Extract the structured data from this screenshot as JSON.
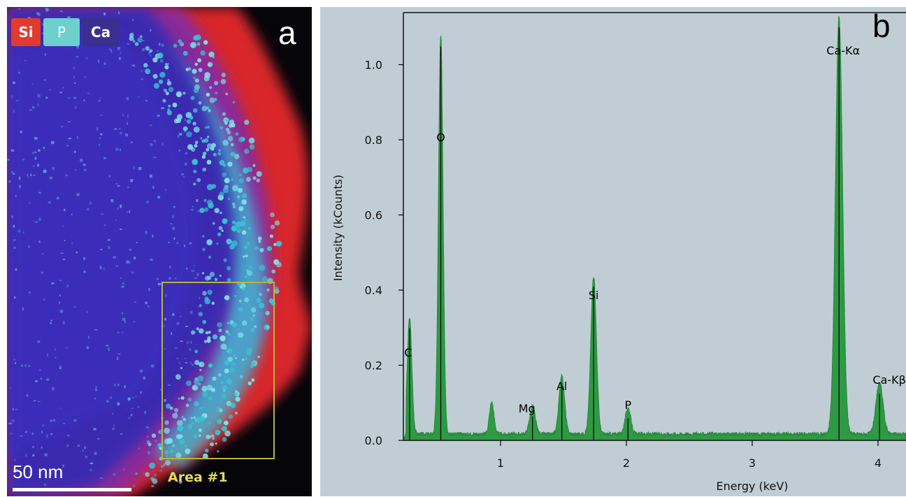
{
  "panel_a": {
    "letter": "a",
    "legend": [
      {
        "label": "Si",
        "color": "#e23a2e"
      },
      {
        "label": "P",
        "color": "#6fcfcf"
      },
      {
        "label": "Ca",
        "color": "#3b2f8f"
      }
    ],
    "scale_bar_label": "50 nm",
    "area_label": "Area #1",
    "area_box_color": "#b8b43a"
  },
  "panel_b": {
    "letter": "b"
  },
  "chart_data": {
    "type": "area",
    "xlabel": "Energy (keV)",
    "ylabel": "Intensity (kCounts)",
    "xlim": [
      0.2,
      4.2
    ],
    "ylim": [
      0,
      1.15
    ],
    "xticks": [
      1,
      2,
      3,
      4
    ],
    "yticks": [
      0.0,
      0.2,
      0.4,
      0.6,
      0.8,
      1.0
    ],
    "ytick_labels": [
      "0.0",
      "0.2",
      "0.4",
      "0.6",
      "0.8",
      "1.0"
    ],
    "grid": false,
    "color": "#2e9a44",
    "baseline": 0.012,
    "peaks": [
      {
        "label": "C",
        "energy": 0.277,
        "height": 0.31,
        "labeled": true
      },
      {
        "label": "O",
        "energy": 0.525,
        "height": 1.06,
        "labeled": true
      },
      {
        "label": "",
        "energy": 0.93,
        "height": 0.085,
        "labeled": false
      },
      {
        "label": "Mg",
        "energy": 1.254,
        "height": 0.075,
        "labeled": true
      },
      {
        "label": "Al",
        "energy": 1.487,
        "height": 0.155,
        "labeled": true
      },
      {
        "label": "Si",
        "energy": 1.74,
        "height": 0.42,
        "labeled": true
      },
      {
        "label": "P",
        "energy": 2.013,
        "height": 0.07,
        "labeled": true
      },
      {
        "label": "Ca-Kα",
        "energy": 3.69,
        "height": 1.11,
        "labeled": true
      },
      {
        "label": "Ca-Kβ",
        "energy": 4.012,
        "height": 0.135,
        "labeled": true
      }
    ]
  }
}
